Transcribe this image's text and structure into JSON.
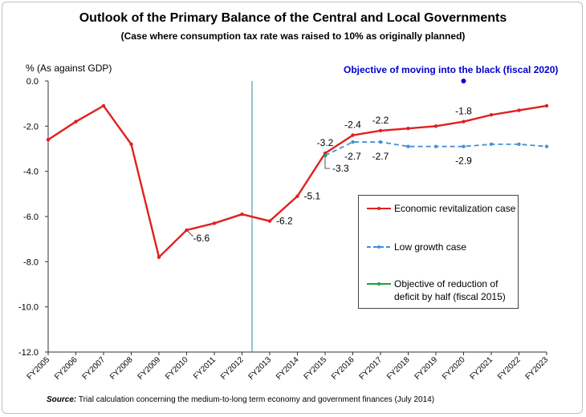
{
  "chart_data": {
    "type": "line",
    "title": "Outlook of the Primary Balance of the Central and Local Governments",
    "subtitle": "(Case where consumption tax rate was raised to 10% as originally planned)",
    "ylabel": "% (As against GDP)",
    "xlabel": "",
    "ylim": [
      -12.0,
      0.0
    ],
    "yticks": [
      "0.0",
      "-2.0",
      "-4.0",
      "-6.0",
      "-8.0",
      "-10.0",
      "-12.0"
    ],
    "ytick_values": [
      0,
      -2,
      -4,
      -6,
      -8,
      -10,
      -12
    ],
    "categories": [
      "FY2005",
      "FY2006",
      "FY2007",
      "FY2008",
      "FY2009",
      "FY2010",
      "FY2011",
      "FY2012",
      "FY2013",
      "FY2014",
      "FY2015",
      "FY2016",
      "FY2017",
      "FY2018",
      "FY2019",
      "FY2020",
      "FY2021",
      "FY2022",
      "FY2023"
    ],
    "series": [
      {
        "name": "Economic revitalization case",
        "color": "#e02020",
        "style": "solid",
        "values": [
          -2.6,
          -1.8,
          -1.1,
          -2.8,
          -7.8,
          -6.6,
          -6.3,
          -5.9,
          -6.2,
          -5.1,
          -3.2,
          -2.4,
          -2.2,
          -2.1,
          -2.0,
          -1.8,
          -1.5,
          -1.3,
          -1.1
        ]
      },
      {
        "name": "Low growth case",
        "color": "#4a90d0",
        "style": "dashed",
        "values": [
          null,
          null,
          null,
          null,
          null,
          null,
          null,
          null,
          null,
          null,
          -3.3,
          -2.7,
          -2.7,
          -2.9,
          -2.9,
          -2.9,
          -2.8,
          -2.8,
          -2.9
        ]
      },
      {
        "name": "Objective of reduction of deficit by half (fiscal 2015)",
        "color": "#20a040",
        "style": "solid",
        "values": [
          null,
          null,
          null,
          null,
          null,
          null,
          null,
          null,
          null,
          null,
          -3.3,
          null,
          null,
          null,
          null,
          null,
          null,
          null,
          null
        ]
      }
    ],
    "data_labels": [
      {
        "text": "-6.6",
        "category": "FY2010",
        "value": -6.6,
        "placement": "lower-right"
      },
      {
        "text": "-6.2",
        "category": "FY2013",
        "value": -6.2,
        "placement": "right"
      },
      {
        "text": "-5.1",
        "category": "FY2014",
        "value": -5.1,
        "placement": "right"
      },
      {
        "text": "-3.2",
        "category": "FY2015",
        "value": -3.2,
        "placement": "above"
      },
      {
        "text": "-3.3",
        "category": "FY2015",
        "value": -3.3,
        "placement": "lower-right-callout"
      },
      {
        "text": "-2.4",
        "category": "FY2016",
        "value": -2.4,
        "placement": "above"
      },
      {
        "text": "-2.7",
        "category": "FY2016",
        "value": -2.7,
        "placement": "below"
      },
      {
        "text": "-2.2",
        "category": "FY2017",
        "value": -2.2,
        "placement": "above"
      },
      {
        "text": "-2.7",
        "category": "FY2017",
        "value": -2.7,
        "placement": "below"
      },
      {
        "text": "-1.8",
        "category": "FY2020",
        "value": -1.8,
        "placement": "above"
      },
      {
        "text": "-2.9",
        "category": "FY2020",
        "value": -2.9,
        "placement": "below"
      }
    ],
    "objective_point": {
      "category": "FY2020",
      "value": 0.0,
      "color": "#0000cc"
    },
    "objective_label": "Objective of moving into the black (fiscal 2020)",
    "divider_category": "FY2013",
    "legend_position": "right"
  },
  "source": {
    "label": "Source:",
    "text": "Trial calculation concerning the medium-to-long term economy and government finances (July 2014)"
  }
}
